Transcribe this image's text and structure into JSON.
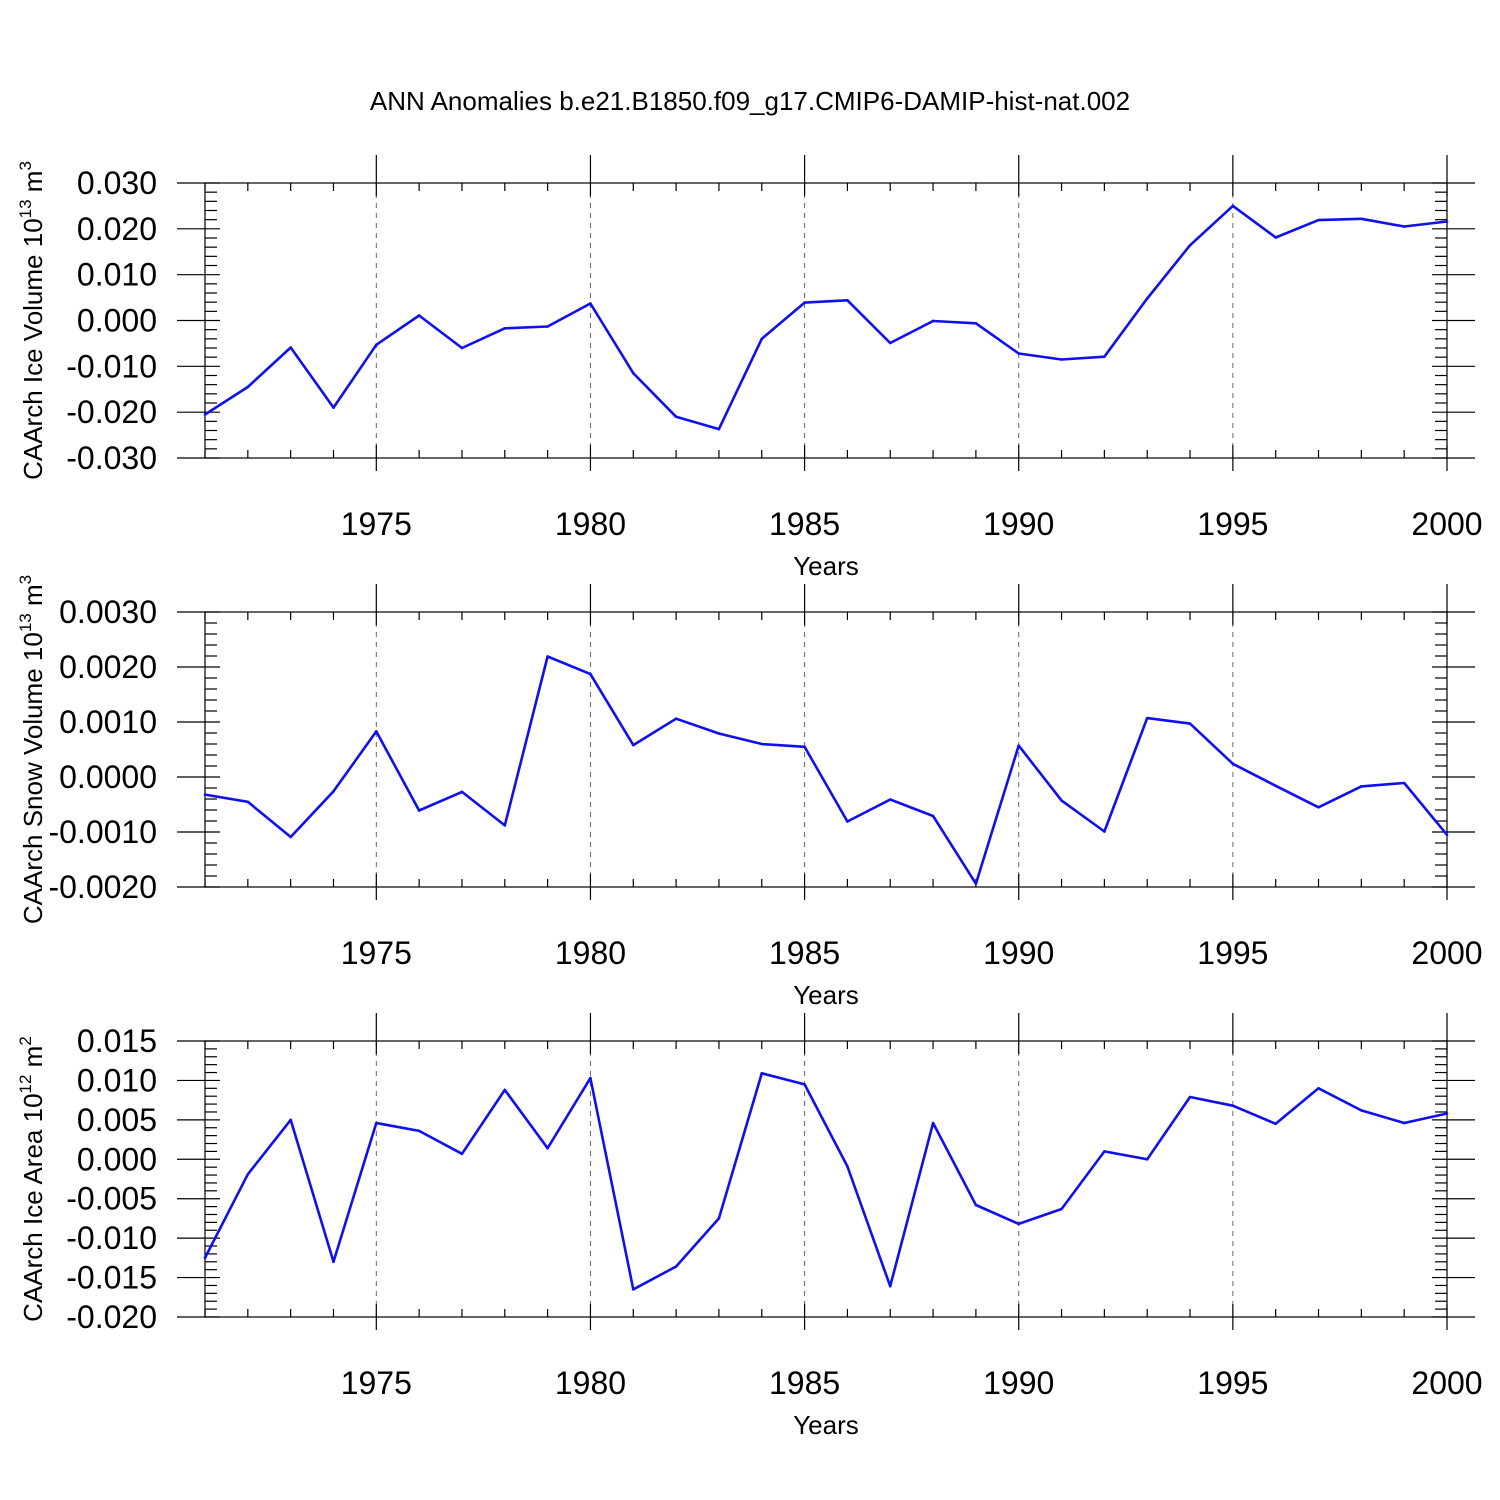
{
  "title": "ANN Anomalies b.e21.B1850.f09_g17.CMIP6-DAMIP-hist-nat.002",
  "colors": {
    "line": "#1010ee",
    "axis": "#000000",
    "grid": "#666666"
  },
  "chart_data": [
    {
      "type": "line",
      "ylabel_main": "CAArch Ice Volume 10",
      "ylabel_exp": "13",
      "ylabel_unit": " m",
      "ylabel_unit_exp": "3",
      "xlabel": "Years",
      "xlim": [
        1971,
        2000
      ],
      "ylim": [
        -0.03,
        0.03
      ],
      "yticks": [
        -0.03,
        -0.02,
        -0.01,
        0.0,
        0.01,
        0.02,
        0.03
      ],
      "ytick_labels": [
        "-0.030",
        "-0.020",
        "-0.010",
        "0.000",
        "0.010",
        "0.020",
        "0.030"
      ],
      "xticks": [
        1975,
        1980,
        1985,
        1990,
        1995,
        2000
      ],
      "xtick_labels": [
        "1975",
        "1980",
        "1985",
        "1990",
        "1995",
        "2000"
      ],
      "grid": "dashed vertical at major x ticks",
      "x": [
        1971,
        1972,
        1973,
        1974,
        1975,
        1976,
        1977,
        1978,
        1979,
        1980,
        1981,
        1982,
        1983,
        1984,
        1985,
        1986,
        1987,
        1988,
        1989,
        1990,
        1991,
        1992,
        1993,
        1994,
        1995,
        1996,
        1997,
        1998,
        1999,
        2000
      ],
      "values": [
        -0.0205,
        -0.0145,
        -0.0059,
        -0.019,
        -0.0053,
        0.0011,
        -0.006,
        -0.0017,
        -0.0013,
        0.0037,
        -0.0115,
        -0.021,
        -0.0237,
        -0.004,
        0.0039,
        0.0044,
        -0.0049,
        -0.0001,
        -0.0006,
        -0.0072,
        -0.0085,
        -0.0079,
        0.0048,
        0.0164,
        0.025,
        0.0181,
        0.0219,
        0.0222,
        0.0205,
        0.0216
      ]
    },
    {
      "type": "line",
      "ylabel_main": "CAArch Snow Volume 10",
      "ylabel_exp": "13",
      "ylabel_unit": " m",
      "ylabel_unit_exp": "3",
      "xlabel": "Years",
      "xlim": [
        1971,
        2000
      ],
      "ylim": [
        -0.002,
        0.003
      ],
      "yticks": [
        -0.002,
        -0.001,
        0.0,
        0.001,
        0.002,
        0.003
      ],
      "ytick_labels": [
        "-0.0020",
        "-0.0010",
        "0.0000",
        "0.0010",
        "0.0020",
        "0.0030"
      ],
      "xticks": [
        1975,
        1980,
        1985,
        1990,
        1995,
        2000
      ],
      "xtick_labels": [
        "1975",
        "1980",
        "1985",
        "1990",
        "1995",
        "2000"
      ],
      "grid": "dashed vertical at major x ticks",
      "x": [
        1971,
        1972,
        1973,
        1974,
        1975,
        1976,
        1977,
        1978,
        1979,
        1980,
        1981,
        1982,
        1983,
        1984,
        1985,
        1986,
        1987,
        1988,
        1989,
        1990,
        1991,
        1992,
        1993,
        1994,
        1995,
        1996,
        1997,
        1998,
        1999,
        2000
      ],
      "values": [
        -0.00032,
        -0.00045,
        -0.00109,
        -0.00026,
        0.00083,
        -0.00061,
        -0.00027,
        -0.00088,
        0.00219,
        0.00187,
        0.00058,
        0.00106,
        0.00079,
        0.0006,
        0.00055,
        -0.00081,
        -0.00041,
        -0.00071,
        -0.00194,
        0.00057,
        -0.00043,
        -0.00099,
        0.00107,
        0.00097,
        0.00024,
        -0.00016,
        -0.00055,
        -0.00017,
        -0.00011,
        -0.00105
      ]
    },
    {
      "type": "line",
      "ylabel_main": "CAArch Ice Area 10",
      "ylabel_exp": "12",
      "ylabel_unit": " m",
      "ylabel_unit_exp": "2",
      "xlabel": "Years",
      "xlim": [
        1971,
        2000
      ],
      "ylim": [
        -0.02,
        0.015
      ],
      "yticks": [
        -0.02,
        -0.015,
        -0.01,
        -0.005,
        0.0,
        0.005,
        0.01,
        0.015
      ],
      "ytick_labels": [
        "-0.020",
        "-0.015",
        "-0.010",
        "-0.005",
        "0.000",
        "0.005",
        "0.010",
        "0.015"
      ],
      "xticks": [
        1975,
        1980,
        1985,
        1990,
        1995,
        2000
      ],
      "xtick_labels": [
        "1975",
        "1980",
        "1985",
        "1990",
        "1995",
        "2000"
      ],
      "grid": "dashed vertical at major x ticks",
      "x": [
        1971,
        1972,
        1973,
        1974,
        1975,
        1976,
        1977,
        1978,
        1979,
        1980,
        1981,
        1982,
        1983,
        1984,
        1985,
        1986,
        1987,
        1988,
        1989,
        1990,
        1991,
        1992,
        1993,
        1994,
        1995,
        1996,
        1997,
        1998,
        1999,
        2000
      ],
      "values": [
        -0.0125,
        -0.0019,
        0.005,
        -0.013,
        0.0046,
        0.0036,
        0.0007,
        0.0088,
        0.0014,
        0.0103,
        -0.0165,
        -0.0136,
        -0.0075,
        0.0109,
        0.0095,
        -0.0009,
        -0.0161,
        0.0046,
        -0.0058,
        -0.0082,
        -0.0063,
        0.001,
        0.0,
        0.0079,
        0.0068,
        0.0045,
        0.009,
        0.0062,
        0.0046,
        0.0058
      ]
    }
  ]
}
